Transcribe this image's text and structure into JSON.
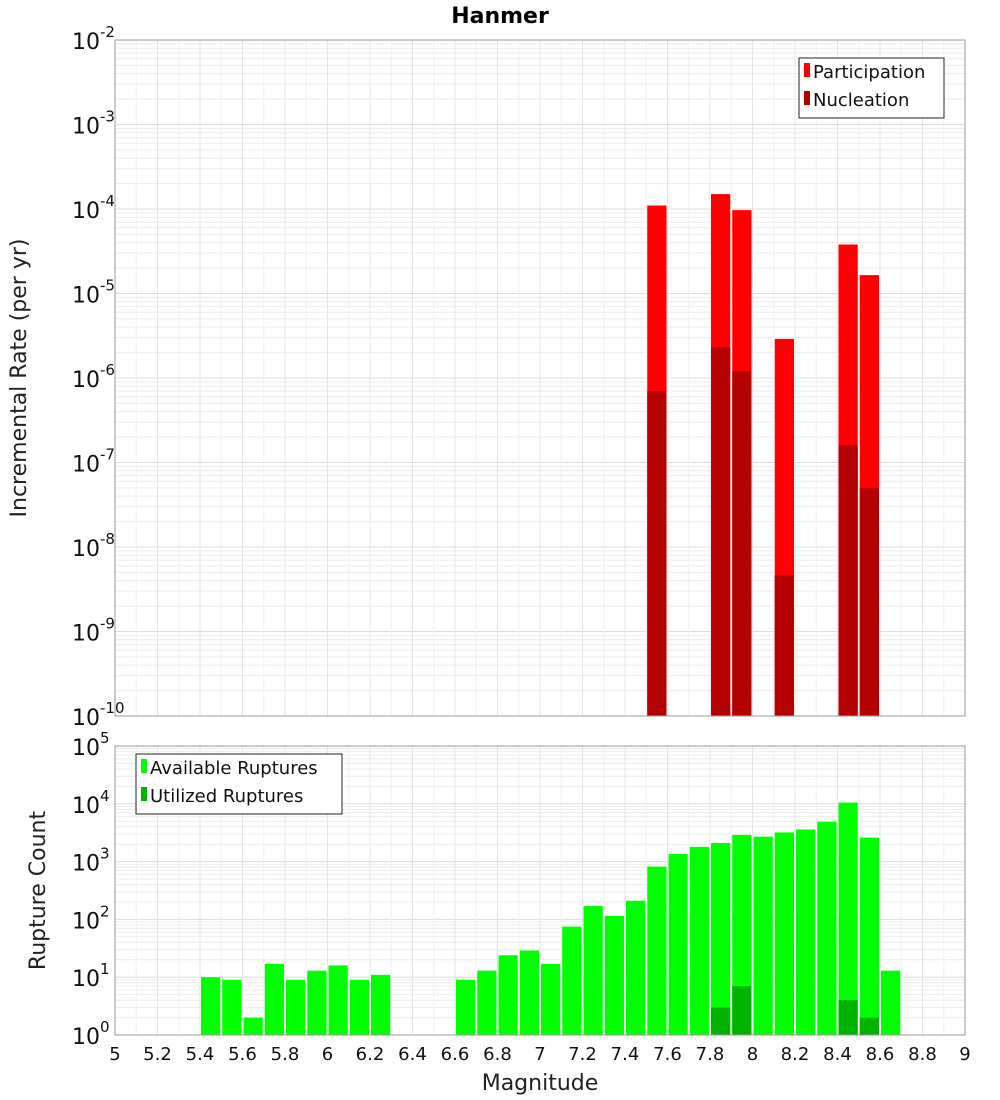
{
  "chart_data": [
    {
      "type": "bar",
      "title": "Hanmer",
      "xlabel": "",
      "ylabel": "Incremental Rate (per yr)",
      "xlim": [
        5,
        9
      ],
      "ylim_exp": [
        -10,
        -2
      ],
      "yscale": "log",
      "y_tick_labels": [
        "10",
        "10",
        "10",
        "10",
        "10",
        "10",
        "10",
        "10",
        "10"
      ],
      "y_tick_exponents": [
        "-10",
        "-9",
        "-8",
        "-7",
        "-6",
        "-5",
        "-4",
        "-3",
        "-2"
      ],
      "grid": true,
      "legend_position": "top-right",
      "bar_width": 0.1,
      "series": [
        {
          "name": "Participation",
          "color": "#ff0000",
          "x": [
            7.55,
            7.85,
            7.95,
            8.15,
            8.45,
            8.55
          ],
          "values": [
            0.00011,
            0.00015,
            9.7e-05,
            2.9e-06,
            3.8e-05,
            1.65e-05
          ]
        },
        {
          "name": "Nucleation",
          "color": "#b30000",
          "x": [
            7.55,
            7.85,
            7.95,
            8.15,
            8.45,
            8.55
          ],
          "values": [
            7e-07,
            2.3e-06,
            1.2e-06,
            4.6e-09,
            1.6e-07,
            5e-08
          ]
        }
      ]
    },
    {
      "type": "bar",
      "title": "",
      "xlabel": "Magnitude",
      "ylabel": "Rupture Count",
      "xlim": [
        5,
        9
      ],
      "ylim_exp": [
        0,
        5
      ],
      "yscale": "log",
      "y_tick_labels": [
        "10",
        "10",
        "10",
        "10",
        "10",
        "10"
      ],
      "y_tick_exponents": [
        "0",
        "1",
        "2",
        "3",
        "4",
        "5"
      ],
      "x_tick_labels": [
        "5",
        "5.2",
        "5.4",
        "5.6",
        "5.8",
        "6",
        "6.2",
        "6.4",
        "6.6",
        "6.8",
        "7",
        "7.2",
        "7.4",
        "7.6",
        "7.8",
        "8",
        "8.2",
        "8.4",
        "8.6",
        "8.8",
        "9"
      ],
      "grid": true,
      "legend_position": "top-left",
      "bar_width": 0.1,
      "series": [
        {
          "name": "Available Ruptures",
          "color": "#00ff00",
          "x": [
            5.45,
            5.55,
            5.65,
            5.75,
            5.85,
            5.95,
            6.05,
            6.15,
            6.25,
            6.35,
            6.65,
            6.75,
            6.85,
            6.95,
            7.05,
            7.15,
            7.25,
            7.35,
            7.45,
            7.55,
            7.65,
            7.75,
            7.85,
            7.95,
            8.05,
            8.15,
            8.25,
            8.35,
            8.45,
            8.55,
            8.65
          ],
          "values": [
            10,
            9,
            2,
            17,
            9,
            13,
            16,
            9,
            11,
            1,
            9,
            13,
            24,
            29,
            17,
            75,
            170,
            115,
            210,
            820,
            1350,
            1800,
            2100,
            2900,
            2700,
            3200,
            3600,
            4900,
            10500,
            2600,
            13
          ]
        },
        {
          "name": "Utilized Ruptures",
          "color": "#00b300",
          "x": [
            7.55,
            7.85,
            7.95,
            8.15,
            8.45,
            8.55
          ],
          "values": [
            1,
            3,
            7,
            1,
            4,
            2
          ]
        }
      ]
    }
  ]
}
